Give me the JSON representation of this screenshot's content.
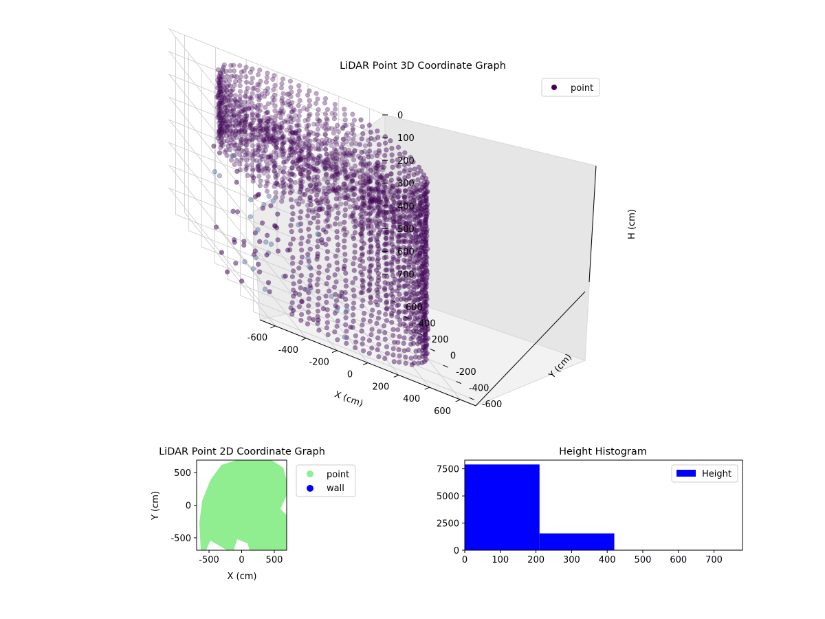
{
  "chart_data": [
    {
      "type": "scatter",
      "projection": "3d",
      "title": "LiDAR Point 3D Coordinate Graph",
      "xlabel": "X (cm)",
      "ylabel": "Y (cm)",
      "zlabel": "H (cm)",
      "xlim": [
        -700,
        700
      ],
      "ylim": [
        -700,
        700
      ],
      "zlim": [
        780,
        0
      ],
      "z_inverted": true,
      "xticks": [
        -600,
        -400,
        -200,
        0,
        200,
        400,
        600
      ],
      "yticks": [
        -600,
        -400,
        -200,
        0,
        200,
        400,
        600
      ],
      "zticks": [
        0,
        100,
        200,
        300,
        400,
        500,
        600,
        700
      ],
      "grid": true,
      "legend_position": "top-right",
      "series": [
        {
          "name": "point",
          "color": "#440154",
          "description_shape": "ring of wall points around radius ~620 cm from H 0 to ~780, dense cap near the top, sparse outliers",
          "ring_radius": 620,
          "sample_points": [
            {
              "x": -620,
              "y": 80,
              "z": 740
            },
            {
              "x": -680,
              "y": -150,
              "z": 760
            },
            {
              "x": -700,
              "y": -420,
              "z": 710
            },
            {
              "x": -560,
              "y": -500,
              "z": 650
            },
            {
              "x": -450,
              "y": -620,
              "z": 700
            },
            {
              "x": -300,
              "y": -650,
              "z": 690
            },
            {
              "x": 350,
              "y": 500,
              "z": 700
            },
            {
              "x": 600,
              "y": -200,
              "z": 650
            }
          ]
        }
      ]
    },
    {
      "type": "scatter",
      "title": "LiDAR Point 2D Coordinate Graph",
      "xlabel": "X (cm)",
      "ylabel": "Y (cm)",
      "xlim": [
        -690,
        690
      ],
      "ylim": [
        -690,
        690
      ],
      "xticks": [
        -500,
        0,
        500
      ],
      "yticks": [
        -500,
        0,
        500
      ],
      "legend_position": "outside-right",
      "series": [
        {
          "name": "point",
          "color": "#90ee90",
          "description_shape": "filled disc of radius ~640 cm centered near origin"
        },
        {
          "name": "wall",
          "color": "#0000ff"
        }
      ]
    },
    {
      "type": "bar",
      "title": "Height Histogram",
      "legend_position": "top-right",
      "xlim": [
        0,
        780
      ],
      "ylim": [
        0,
        8300
      ],
      "xticks": [
        0,
        100,
        200,
        300,
        400,
        500,
        600,
        700
      ],
      "yticks": [
        0,
        2500,
        5000,
        7500
      ],
      "bins": [
        {
          "start": 0,
          "end": 210,
          "count": 7900
        },
        {
          "start": 210,
          "end": 420,
          "count": 1550
        },
        {
          "start": 420,
          "end": 780,
          "count": 40
        }
      ],
      "series": [
        {
          "name": "Height",
          "color": "#0000ff"
        }
      ]
    }
  ]
}
